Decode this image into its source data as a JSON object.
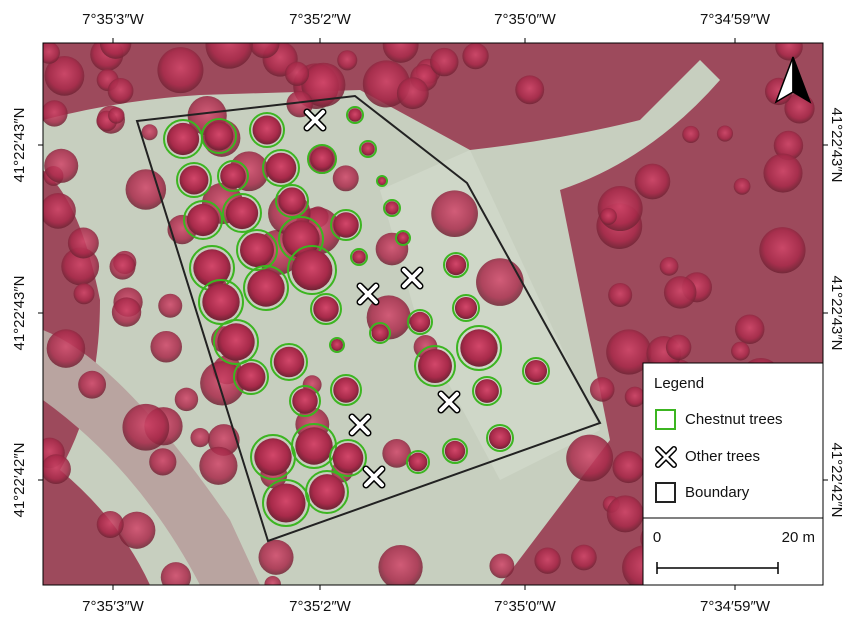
{
  "map": {
    "top_labels": [
      "7°35′3″W",
      "7°35′2″W",
      "7°35′0″W",
      "7°34′59″W"
    ],
    "bottom_labels": [
      "7°35′3″W",
      "7°35′2″W",
      "7°35′0″W",
      "7°34′59″W"
    ],
    "left_labels": [
      "41°22′43″N",
      "41°22′43″N",
      "41°22′42″N"
    ],
    "right_labels": [
      "41°22′43″N",
      "41°22′43″N",
      "41°22′42″N"
    ],
    "legend": {
      "title": "Legend",
      "items": [
        "Chestnut trees",
        "Other trees",
        "Boundary"
      ]
    },
    "scale": {
      "start": "0",
      "end": "20 m"
    }
  }
}
